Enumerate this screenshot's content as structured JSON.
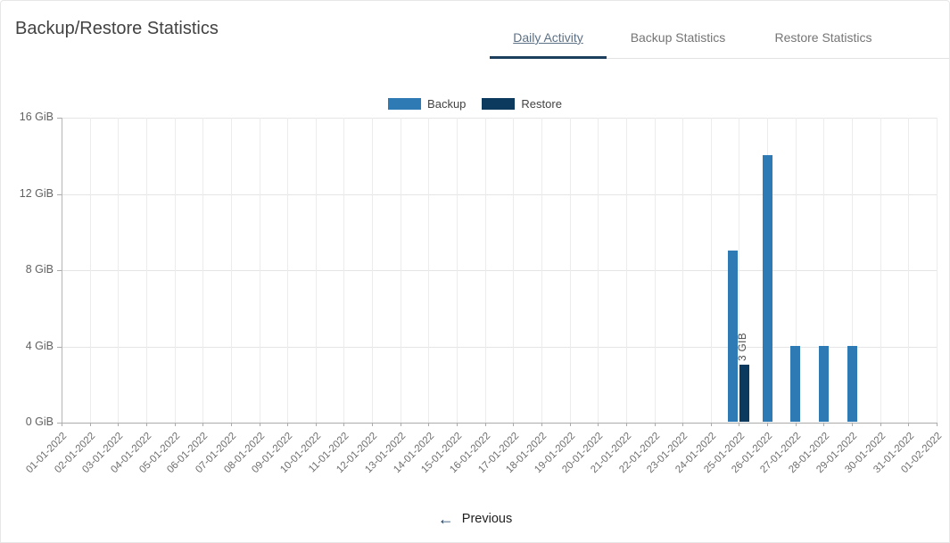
{
  "header": {
    "title": "Backup/Restore Statistics"
  },
  "tabs": [
    {
      "label": "Daily Activity",
      "active": true
    },
    {
      "label": "Backup Statistics",
      "active": false
    },
    {
      "label": "Restore Statistics",
      "active": false
    }
  ],
  "legend": [
    {
      "label": "Backup",
      "color": "#2e7ab5"
    },
    {
      "label": "Restore",
      "color": "#0c3a5e"
    }
  ],
  "chart_data": {
    "type": "bar",
    "title": "",
    "xlabel": "",
    "ylabel": "",
    "ylim": [
      0,
      16
    ],
    "yticks": [
      0,
      4,
      8,
      12,
      16
    ],
    "ytick_labels": [
      "0 GiB",
      "4 GiB",
      "8 GiB",
      "12 GiB",
      "16 GiB"
    ],
    "grid": true,
    "legend_position": "top",
    "categories": [
      "01-01-2022",
      "02-01-2022",
      "03-01-2022",
      "04-01-2022",
      "05-01-2022",
      "06-01-2022",
      "07-01-2022",
      "08-01-2022",
      "09-01-2022",
      "10-01-2022",
      "11-01-2022",
      "12-01-2022",
      "13-01-2022",
      "14-01-2022",
      "15-01-2022",
      "16-01-2022",
      "17-01-2022",
      "18-01-2022",
      "19-01-2022",
      "20-01-2022",
      "21-01-2022",
      "22-01-2022",
      "23-01-2022",
      "24-01-2022",
      "25-01-2022",
      "26-01-2022",
      "27-01-2022",
      "28-01-2022",
      "29-01-2022",
      "30-01-2022",
      "31-01-2022",
      "01-02-2022"
    ],
    "series": [
      {
        "name": "Backup",
        "color": "#2e7ab5",
        "values": [
          0,
          0,
          0,
          0,
          0,
          0,
          0,
          0,
          0,
          0,
          0,
          0,
          0,
          0,
          0,
          0,
          0,
          0,
          0,
          0,
          0,
          0,
          0,
          0,
          9,
          14,
          4,
          4,
          4,
          0,
          0,
          0
        ]
      },
      {
        "name": "Restore",
        "color": "#0c3a5e",
        "values": [
          0,
          0,
          0,
          0,
          0,
          0,
          0,
          0,
          0,
          0,
          0,
          0,
          0,
          0,
          0,
          0,
          0,
          0,
          0,
          0,
          0,
          0,
          0,
          0,
          3,
          0,
          0,
          0,
          0,
          0,
          0,
          0
        ]
      }
    ],
    "bar_labels": [
      {
        "series": "Restore",
        "category": "25-01-2022",
        "text": "3 GIB"
      }
    ]
  },
  "footer": {
    "previous_label": "Previous",
    "previous_icon": "←"
  }
}
